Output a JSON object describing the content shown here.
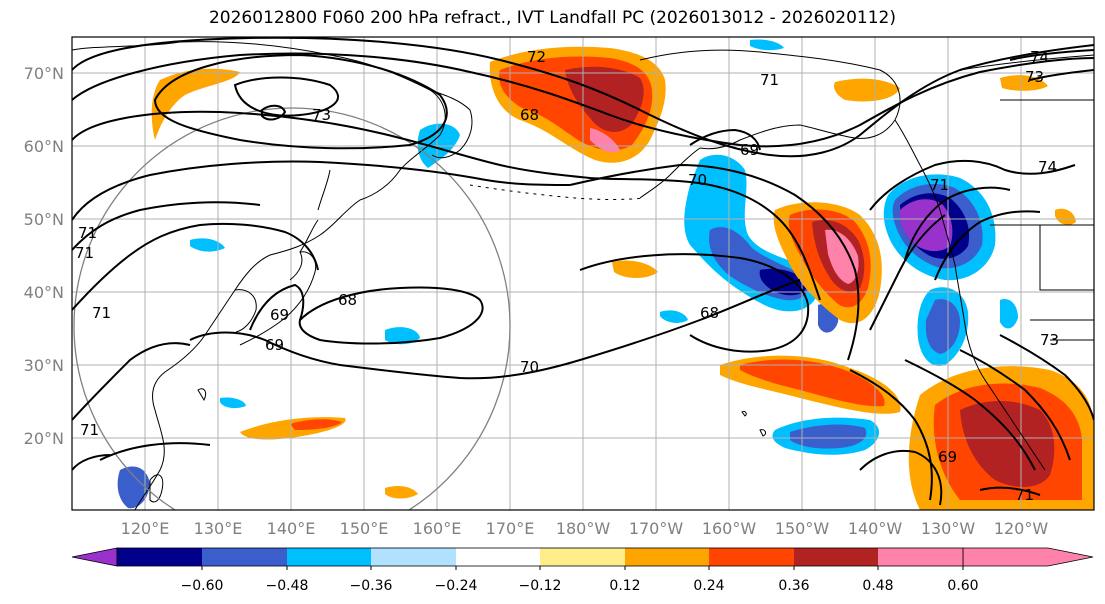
{
  "title": "2026012800 F060 200 hPa refract., IVT Landfall PC (2026013012 - 2026020112)",
  "lat_labels": [
    "70°N",
    "60°N",
    "50°N",
    "40°N",
    "30°N",
    "20°N"
  ],
  "lon_labels": [
    "120°E",
    "130°E",
    "140°E",
    "150°E",
    "160°E",
    "170°E",
    "180°W",
    "170°W",
    "160°W",
    "150°W",
    "140°W",
    "130°W",
    "120°W"
  ],
  "contour_labels": [
    "72",
    "71",
    "74",
    "73",
    "73",
    "68",
    "69",
    "70",
    "74",
    "71",
    "68",
    "68",
    "69",
    "70",
    "71",
    "69",
    "73",
    "71",
    "69",
    "71",
    "71",
    "71"
  ],
  "colorbar": {
    "ticks": [
      "−0.60",
      "−0.48",
      "−0.36",
      "−0.24",
      "−0.12",
      "0.12",
      "0.24",
      "0.36",
      "0.48",
      "0.60"
    ],
    "colors": [
      "#9932cc",
      "#00008b",
      "#3a5fcd",
      "#00bfff",
      "#b0e2ff",
      "#ffffff",
      "#ffec8b",
      "#ffa500",
      "#ff4500",
      "#b22222",
      "#ff82ab"
    ]
  },
  "colors": {
    "coast": "#000000",
    "grid": "#b0b0b0",
    "contour": "#000000",
    "circle": "#808080"
  }
}
